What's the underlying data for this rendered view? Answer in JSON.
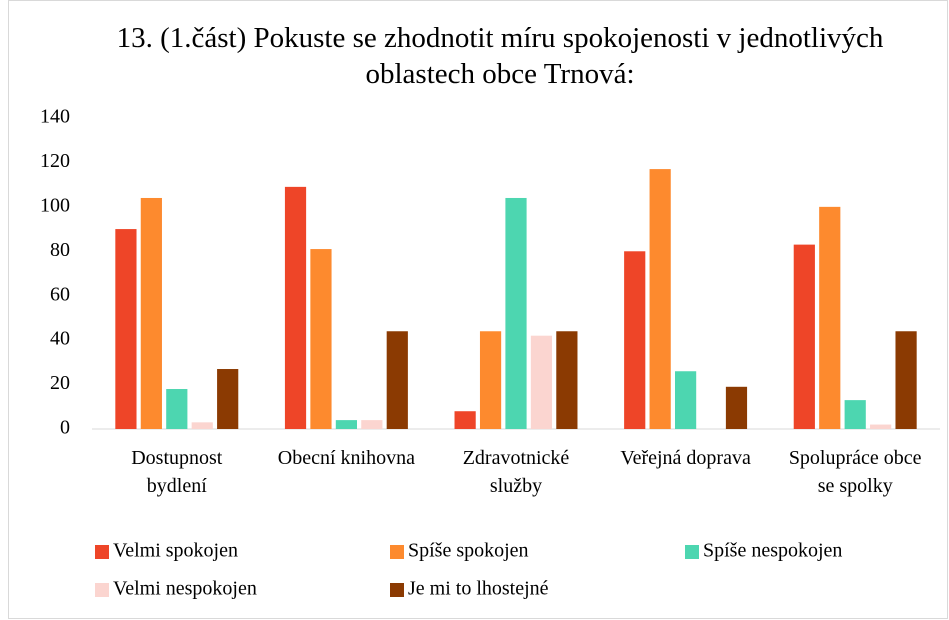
{
  "chart_data": {
    "type": "bar",
    "title": "13. (1.část) Pokuste se zhodnotit míru spokojenosti v jednotlivých oblastech obce Trnová:",
    "categories": [
      "Dostupnost bydlení",
      "Obecní knihovna",
      "Zdravotnické služby",
      "Veřejná doprava",
      "Spolupráce obce se spolky"
    ],
    "series": [
      {
        "name": "Velmi spokojen",
        "color": "#ee4528",
        "values": [
          90,
          109,
          8,
          80,
          83
        ]
      },
      {
        "name": "Spíše spokojen",
        "color": "#fd8a2e",
        "values": [
          104,
          81,
          44,
          117,
          100
        ]
      },
      {
        "name": "Spíše nespokojen",
        "color": "#4dd6b0",
        "values": [
          18,
          4,
          104,
          26,
          13
        ]
      },
      {
        "name": "Velmi nespokojen",
        "color": "#fbd5d0",
        "values": [
          3,
          4,
          42,
          0,
          2
        ]
      },
      {
        "name": "Je mi to lhostejné",
        "color": "#8b3a02",
        "values": [
          27,
          44,
          44,
          19,
          44
        ]
      }
    ],
    "ylim": [
      0,
      140
    ],
    "yticks": [
      0,
      20,
      40,
      60,
      80,
      100,
      120,
      140
    ],
    "grid": false,
    "legend": "bottom"
  }
}
